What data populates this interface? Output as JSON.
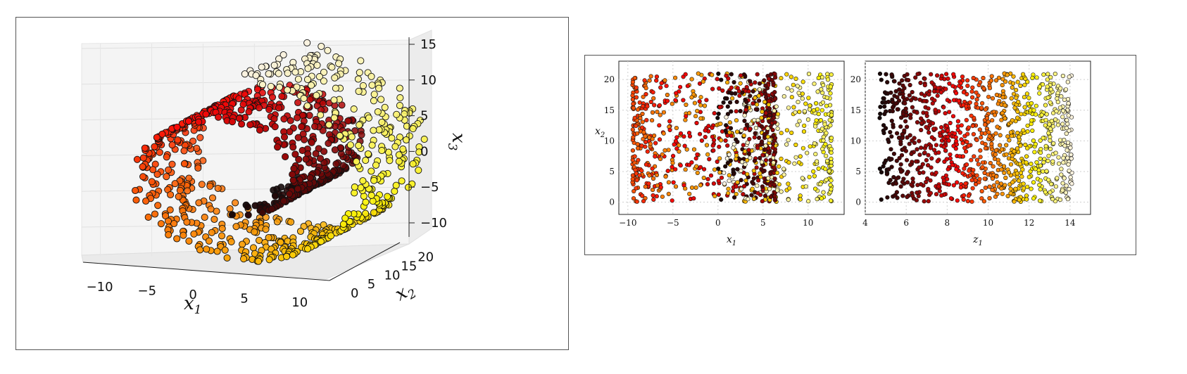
{
  "colors": {
    "frame": "#555555",
    "pane": "#f3f3f3",
    "grid": "#e2e2e2"
  },
  "chart_data": [
    {
      "type": "scatter",
      "subtype": "3d",
      "title": "",
      "xlabel": "x_1",
      "ylabel": "x_2",
      "zlabel": "x_3",
      "x_ticks": [
        "−10",
        "−5",
        "0",
        "5",
        "10"
      ],
      "y_ticks": [
        "0",
        "5",
        "10",
        "15",
        "20"
      ],
      "z_ticks": [
        "−10",
        "−5",
        "0",
        "5",
        "10",
        "15"
      ],
      "xlim": [
        -11,
        13
      ],
      "ylim": [
        0,
        21
      ],
      "zlim": [
        -12,
        15
      ],
      "colormap": "hot",
      "description_points": "Swiss roll: x1 = t·cos(t), x3 = t·sin(t), x2 uniform in [0, 21], t from 4.7 to 14.1; color encodes t",
      "t_range": [
        4.7,
        14.1
      ],
      "n_points": 1000
    },
    {
      "type": "scatter",
      "title": "",
      "xlabel": "x_1",
      "ylabel": "x_2",
      "x_ticks": [
        "−10",
        "−5",
        "0",
        "5",
        "10"
      ],
      "y_ticks": [
        "0",
        "5",
        "10",
        "15",
        "20"
      ],
      "xlim": [
        -11,
        14
      ],
      "ylim": [
        -2,
        23
      ],
      "grid": true,
      "colormap": "hot",
      "n_points": 1000
    },
    {
      "type": "scatter",
      "title": "",
      "xlabel": "z_1",
      "ylabel": "",
      "x_ticks": [
        "4",
        "6",
        "8",
        "10",
        "12",
        "14"
      ],
      "y_ticks": [
        "0",
        "5",
        "10",
        "15",
        "20"
      ],
      "xlim": [
        4,
        15
      ],
      "ylim": [
        -2,
        23
      ],
      "grid": true,
      "colormap": "hot",
      "n_points": 1000
    }
  ]
}
